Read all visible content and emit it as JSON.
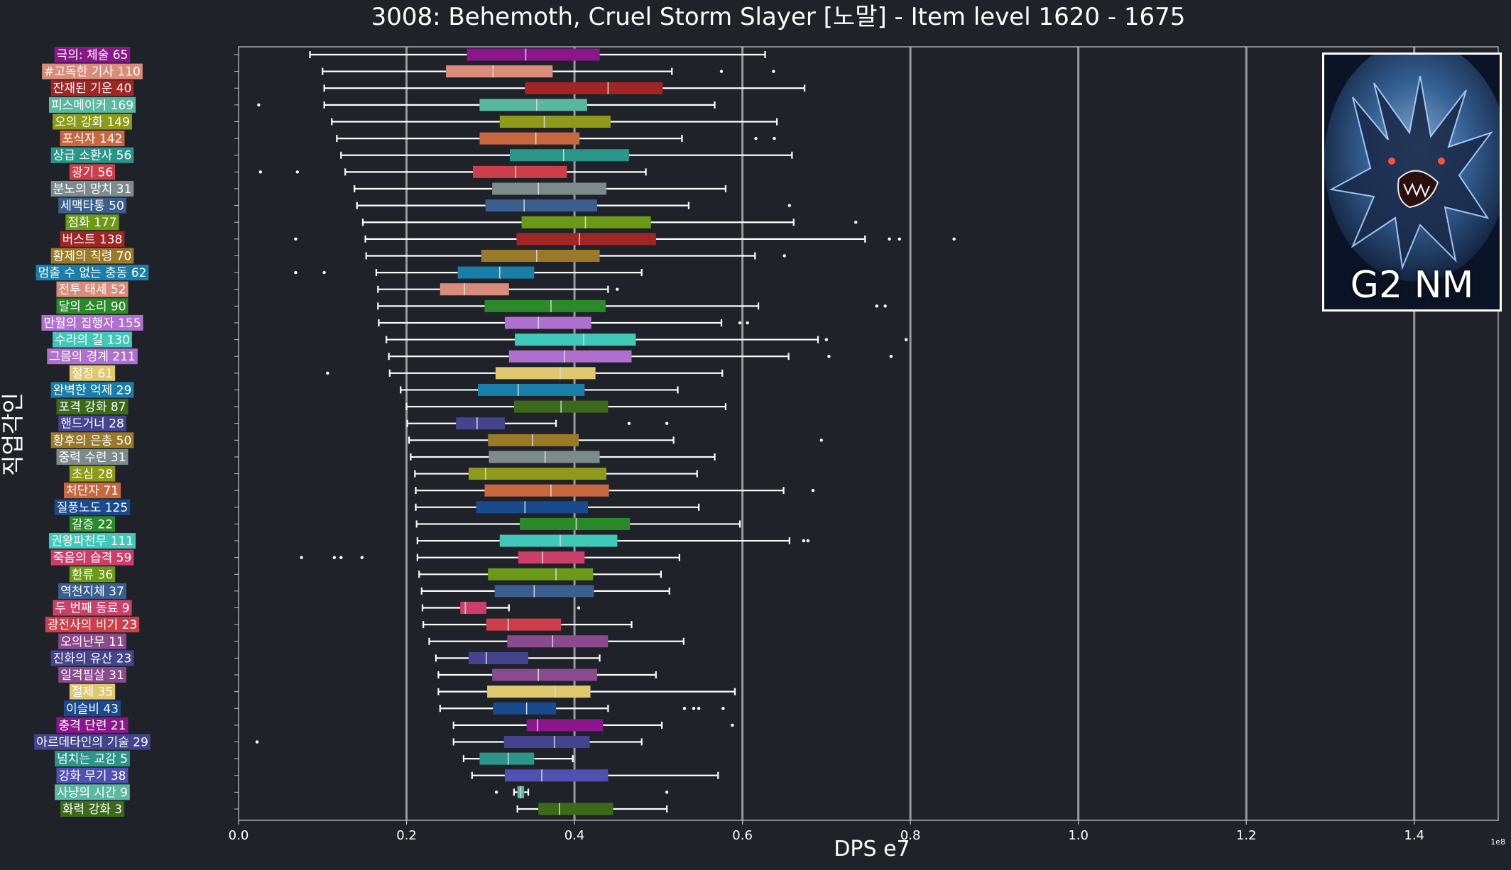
{
  "chart_data": {
    "type": "boxplot",
    "title": "3008: Behemoth, Cruel Storm Slayer [노말] - Item level 1620 - 1675",
    "xlabel": "DPS e7",
    "ylabel": "직업각인",
    "x_offset_label": "1e8",
    "xlim": [
      0,
      1.5
    ],
    "x_ticks": [
      "0.0",
      "0.2",
      "0.4",
      "0.6",
      "0.8",
      "1.0",
      "1.2",
      "1.4"
    ],
    "grid": "vertical",
    "badge_text": "G2 NM",
    "categories": [
      {
        "label": "극의: 체술 65",
        "color": "#8b168b",
        "whislo": 0.085,
        "q1": 0.272,
        "med": 0.342,
        "q3": 0.43,
        "whishi": 0.627,
        "fliers": []
      },
      {
        "label": "#고독한 기사 110",
        "color": "#d98c7a",
        "whislo": 0.1,
        "q1": 0.247,
        "med": 0.303,
        "q3": 0.374,
        "whishi": 0.516,
        "fliers": [
          0.575,
          0.637
        ]
      },
      {
        "label": "잔재된 기운 40",
        "color": "#a02525",
        "whislo": 0.102,
        "q1": 0.341,
        "med": 0.44,
        "q3": 0.505,
        "whishi": 0.674,
        "fliers": []
      },
      {
        "label": "피스메이커 169",
        "color": "#5ab8a0",
        "whislo": 0.102,
        "q1": 0.287,
        "med": 0.355,
        "q3": 0.415,
        "whishi": 0.567,
        "fliers": [
          0.024
        ]
      },
      {
        "label": "오의 강화 149",
        "color": "#8d9a1a",
        "whislo": 0.111,
        "q1": 0.311,
        "med": 0.364,
        "q3": 0.443,
        "whishi": 0.641,
        "fliers": []
      },
      {
        "label": "포식자 142",
        "color": "#c8683f",
        "whislo": 0.117,
        "q1": 0.287,
        "med": 0.354,
        "q3": 0.406,
        "whishi": 0.528,
        "fliers": [
          0.616,
          0.638
        ]
      },
      {
        "label": "상급 소환사 56",
        "color": "#2a968a",
        "whislo": 0.122,
        "q1": 0.323,
        "med": 0.387,
        "q3": 0.465,
        "whishi": 0.659,
        "fliers": []
      },
      {
        "label": "광기 56",
        "color": "#cc3f4a",
        "whislo": 0.127,
        "q1": 0.279,
        "med": 0.33,
        "q3": 0.391,
        "whishi": 0.485,
        "fliers": [
          0.026,
          0.07
        ]
      },
      {
        "label": "분노의 망치 31",
        "color": "#7d8b8d",
        "whislo": 0.138,
        "q1": 0.302,
        "med": 0.357,
        "q3": 0.438,
        "whishi": 0.58,
        "fliers": []
      },
      {
        "label": "세맥타통 50",
        "color": "#3a5f8e",
        "whislo": 0.141,
        "q1": 0.294,
        "med": 0.34,
        "q3": 0.427,
        "whishi": 0.536,
        "fliers": [
          0.656
        ]
      },
      {
        "label": "점화 177",
        "color": "#6a9a18",
        "whislo": 0.148,
        "q1": 0.337,
        "med": 0.413,
        "q3": 0.491,
        "whishi": 0.661,
        "fliers": [
          0.735
        ]
      },
      {
        "label": "버스트 138",
        "color": "#a02525",
        "whislo": 0.151,
        "q1": 0.331,
        "med": 0.406,
        "q3": 0.497,
        "whishi": 0.746,
        "fliers": [
          0.068,
          0.775,
          0.787,
          0.852
        ]
      },
      {
        "label": "황제의 칙령 70",
        "color": "#9a7a28",
        "whislo": 0.152,
        "q1": 0.289,
        "med": 0.355,
        "q3": 0.43,
        "whishi": 0.615,
        "fliers": [
          0.65
        ]
      },
      {
        "label": "멈출 수 없는 충동 62",
        "color": "#1a7fa8",
        "whislo": 0.164,
        "q1": 0.261,
        "med": 0.311,
        "q3": 0.352,
        "whishi": 0.48,
        "fliers": [
          0.068,
          0.102
        ]
      },
      {
        "label": "전투 태세 52",
        "color": "#d98c7a",
        "whislo": 0.166,
        "q1": 0.24,
        "med": 0.269,
        "q3": 0.322,
        "whishi": 0.44,
        "fliers": [
          0.451
        ]
      },
      {
        "label": "달의 소리 90",
        "color": "#2a8a2a",
        "whislo": 0.166,
        "q1": 0.293,
        "med": 0.372,
        "q3": 0.437,
        "whishi": 0.619,
        "fliers": [
          0.76,
          0.77
        ]
      },
      {
        "label": "만월의 집행자 155",
        "color": "#b070d0",
        "whislo": 0.167,
        "q1": 0.317,
        "med": 0.357,
        "q3": 0.42,
        "whishi": 0.575,
        "fliers": [
          0.597,
          0.606
        ]
      },
      {
        "label": "수라의 길 130",
        "color": "#40c8b8",
        "whislo": 0.176,
        "q1": 0.329,
        "med": 0.411,
        "q3": 0.473,
        "whishi": 0.69,
        "fliers": [
          0.7,
          0.795
        ]
      },
      {
        "label": "그믐의 경계 211",
        "color": "#b070d0",
        "whislo": 0.179,
        "q1": 0.322,
        "med": 0.388,
        "q3": 0.468,
        "whishi": 0.655,
        "fliers": [
          0.703,
          0.777
        ]
      },
      {
        "label": "절정 61",
        "color": "#e0c870",
        "whislo": 0.18,
        "q1": 0.306,
        "med": 0.383,
        "q3": 0.425,
        "whishi": 0.576,
        "fliers": [
          0.106
        ]
      },
      {
        "label": "완벽한 억제 29",
        "color": "#1a7fa8",
        "whislo": 0.193,
        "q1": 0.285,
        "med": 0.333,
        "q3": 0.412,
        "whishi": 0.523,
        "fliers": []
      },
      {
        "label": "포격 강화 87",
        "color": "#3a6a1a",
        "whislo": 0.2,
        "q1": 0.328,
        "med": 0.384,
        "q3": 0.44,
        "whishi": 0.58,
        "fliers": []
      },
      {
        "label": "핸드거너 28",
        "color": "#44448e",
        "whislo": 0.201,
        "q1": 0.259,
        "med": 0.284,
        "q3": 0.317,
        "whishi": 0.378,
        "fliers": [
          0.465,
          0.51
        ]
      },
      {
        "label": "황후의 은총 50",
        "color": "#9a7a28",
        "whislo": 0.203,
        "q1": 0.297,
        "med": 0.35,
        "q3": 0.405,
        "whishi": 0.518,
        "fliers": [
          0.694
        ]
      },
      {
        "label": "중력 수련 31",
        "color": "#7d8b8d",
        "whislo": 0.205,
        "q1": 0.298,
        "med": 0.365,
        "q3": 0.43,
        "whishi": 0.567,
        "fliers": []
      },
      {
        "label": "초심 28",
        "color": "#8d9a1a",
        "whislo": 0.21,
        "q1": 0.274,
        "med": 0.294,
        "q3": 0.438,
        "whishi": 0.546,
        "fliers": []
      },
      {
        "label": "처단자 71",
        "color": "#c8683f",
        "whislo": 0.211,
        "q1": 0.293,
        "med": 0.372,
        "q3": 0.441,
        "whishi": 0.649,
        "fliers": [
          0.684
        ]
      },
      {
        "label": "질풍노도 125",
        "color": "#1a4a8e",
        "whislo": 0.211,
        "q1": 0.283,
        "med": 0.341,
        "q3": 0.416,
        "whishi": 0.548,
        "fliers": []
      },
      {
        "label": "갈증 22",
        "color": "#2a8a2a",
        "whislo": 0.212,
        "q1": 0.335,
        "med": 0.402,
        "q3": 0.466,
        "whishi": 0.597,
        "fliers": []
      },
      {
        "label": "권왕파천무 111",
        "color": "#40c8b8",
        "whislo": 0.213,
        "q1": 0.311,
        "med": 0.383,
        "q3": 0.451,
        "whishi": 0.656,
        "fliers": [
          0.673,
          0.678
        ]
      },
      {
        "label": "죽음의 습격 59",
        "color": "#cc3f6a",
        "whislo": 0.213,
        "q1": 0.333,
        "med": 0.362,
        "q3": 0.412,
        "whishi": 0.525,
        "fliers": [
          0.075,
          0.114,
          0.122,
          0.147
        ]
      },
      {
        "label": "환류 36",
        "color": "#6a9a18",
        "whislo": 0.215,
        "q1": 0.297,
        "med": 0.378,
        "q3": 0.422,
        "whishi": 0.503,
        "fliers": []
      },
      {
        "label": "역천지체 37",
        "color": "#3a5f8e",
        "whislo": 0.218,
        "q1": 0.305,
        "med": 0.352,
        "q3": 0.423,
        "whishi": 0.513,
        "fliers": []
      },
      {
        "label": "두 번째 동료 9",
        "color": "#cc3f6a",
        "whislo": 0.219,
        "q1": 0.264,
        "med": 0.27,
        "q3": 0.295,
        "whishi": 0.322,
        "fliers": [
          0.405
        ]
      },
      {
        "label": "광전사의 비기 23",
        "color": "#cc3f4a",
        "whislo": 0.22,
        "q1": 0.295,
        "med": 0.321,
        "q3": 0.384,
        "whishi": 0.468,
        "fliers": []
      },
      {
        "label": "오의난무 11",
        "color": "#8a4a8e",
        "whislo": 0.227,
        "q1": 0.32,
        "med": 0.374,
        "q3": 0.44,
        "whishi": 0.53,
        "fliers": []
      },
      {
        "label": "진화의 유산 23",
        "color": "#44448e",
        "whislo": 0.235,
        "q1": 0.274,
        "med": 0.295,
        "q3": 0.345,
        "whishi": 0.43,
        "fliers": []
      },
      {
        "label": "일격필살 31",
        "color": "#8a4a8e",
        "whislo": 0.238,
        "q1": 0.302,
        "med": 0.357,
        "q3": 0.427,
        "whishi": 0.497,
        "fliers": []
      },
      {
        "label": "절제 35",
        "color": "#e0c870",
        "whislo": 0.238,
        "q1": 0.296,
        "med": 0.377,
        "q3": 0.419,
        "whishi": 0.591,
        "fliers": []
      },
      {
        "label": "이슬비 43",
        "color": "#1a4a8e",
        "whislo": 0.24,
        "q1": 0.303,
        "med": 0.343,
        "q3": 0.378,
        "whishi": 0.44,
        "fliers": [
          0.531,
          0.542,
          0.548,
          0.577
        ]
      },
      {
        "label": "충격 단련 21",
        "color": "#8b168b",
        "whislo": 0.256,
        "q1": 0.343,
        "med": 0.356,
        "q3": 0.434,
        "whishi": 0.504,
        "fliers": [
          0.588
        ]
      },
      {
        "label": "아르데타인의 기술 29",
        "color": "#44448e",
        "whislo": 0.256,
        "q1": 0.316,
        "med": 0.376,
        "q3": 0.418,
        "whishi": 0.48,
        "fliers": [
          0.022
        ]
      },
      {
        "label": "넘치는 교감 5",
        "color": "#2a968a",
        "whislo": 0.268,
        "q1": 0.287,
        "med": 0.321,
        "q3": 0.352,
        "whishi": 0.398,
        "fliers": []
      },
      {
        "label": "강화 무기 38",
        "color": "#5050b0",
        "whislo": 0.278,
        "q1": 0.317,
        "med": 0.361,
        "q3": 0.44,
        "whishi": 0.571,
        "fliers": []
      },
      {
        "label": "사냥의 시간 9",
        "color": "#5ab8a0",
        "whislo": 0.328,
        "q1": 0.332,
        "med": 0.336,
        "q3": 0.34,
        "whishi": 0.345,
        "fliers": [
          0.307,
          0.51
        ]
      },
      {
        "label": "화력 강화 3",
        "color": "#3a6a1a",
        "whislo": 0.332,
        "q1": 0.357,
        "med": 0.382,
        "q3": 0.446,
        "whishi": 0.51,
        "fliers": []
      }
    ]
  }
}
